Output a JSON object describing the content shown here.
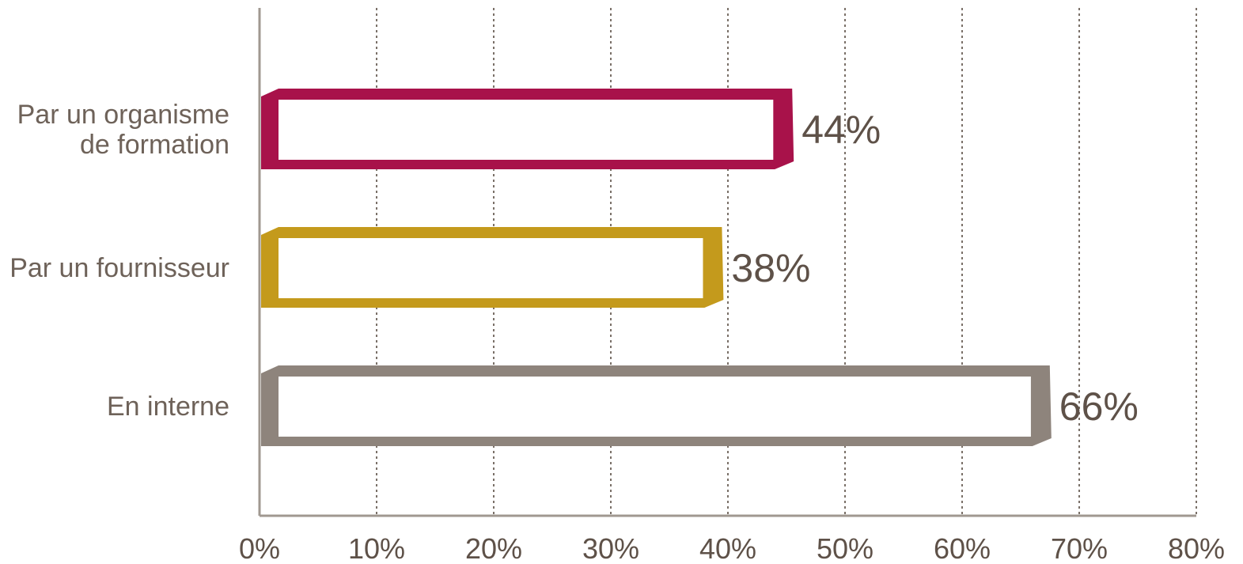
{
  "chart_data": {
    "type": "bar",
    "orientation": "horizontal",
    "categories": [
      "Par un organisme|de formation",
      "Par un fournisseur",
      "En interne"
    ],
    "values": [
      44,
      38,
      66
    ],
    "value_labels": [
      "44%",
      "38%",
      "66%"
    ],
    "colors": [
      "#a8124a",
      "#c49a1c",
      "#8e847c"
    ],
    "xlim": [
      0,
      80
    ],
    "x_ticks": [
      0,
      10,
      20,
      30,
      40,
      50,
      60,
      70,
      80
    ],
    "x_tick_labels": [
      "0%",
      "10%",
      "20%",
      "30%",
      "40%",
      "50%",
      "60%",
      "70%",
      "80%"
    ],
    "grid": true,
    "grid_style": "dotted vertical",
    "bar_style": "outlined 3D frame",
    "title": "",
    "xlabel": "",
    "ylabel": ""
  },
  "colors": {
    "axis": "#a09890",
    "grid": "#7a7068",
    "text": "#5e5148",
    "category_text": "#6e6259"
  }
}
